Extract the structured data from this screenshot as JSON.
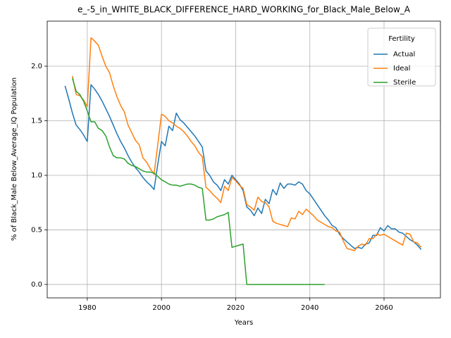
{
  "chart_data": {
    "type": "line",
    "title": "e_-5_in_WHITE_BLACK_DIFFERENCE_HARD_WORKING_for_Black_Male_Below_A",
    "x_label": "Years",
    "y_label": "% of Black_Male Below_Average_IQ Population",
    "legend_title": "Fertility",
    "legend_loc": "upper right",
    "grid": true,
    "x": [
      1974,
      1975,
      1976,
      1977,
      1978,
      1979,
      1980,
      1981,
      1982,
      1983,
      1984,
      1985,
      1986,
      1987,
      1988,
      1989,
      1990,
      1991,
      1992,
      1993,
      1994,
      1995,
      1996,
      1997,
      1998,
      1999,
      2000,
      2001,
      2002,
      2003,
      2004,
      2005,
      2006,
      2007,
      2008,
      2009,
      2010,
      2011,
      2012,
      2013,
      2014,
      2015,
      2016,
      2017,
      2018,
      2019,
      2020,
      2021,
      2022,
      2023,
      2024,
      2025,
      2026,
      2027,
      2028,
      2029,
      2030,
      2031,
      2032,
      2033,
      2034,
      2035,
      2036,
      2037,
      2038,
      2039,
      2040,
      2041,
      2042,
      2043,
      2044,
      2045,
      2046,
      2047,
      2048,
      2049,
      2050,
      2051,
      2052,
      2053,
      2054,
      2055,
      2056,
      2057,
      2058,
      2059,
      2060,
      2061,
      2062,
      2063,
      2064,
      2065,
      2066,
      2067,
      2068,
      2069,
      2070
    ],
    "series": [
      {
        "name": "Actual",
        "color": "#1f77b4",
        "values": [
          1.82,
          1.7,
          1.57,
          1.46,
          1.42,
          1.37,
          1.31,
          1.83,
          1.79,
          1.74,
          1.68,
          1.61,
          1.54,
          1.46,
          1.38,
          1.31,
          1.25,
          1.18,
          1.12,
          1.07,
          1.03,
          0.98,
          0.94,
          0.91,
          0.87,
          1.1,
          1.31,
          1.27,
          1.45,
          1.41,
          1.57,
          1.51,
          1.48,
          1.44,
          1.4,
          1.36,
          1.31,
          1.26,
          1.04,
          1.0,
          0.94,
          0.91,
          0.86,
          0.96,
          0.92,
          1.0,
          0.96,
          0.92,
          0.86,
          0.71,
          0.68,
          0.63,
          0.7,
          0.65,
          0.78,
          0.74,
          0.87,
          0.82,
          0.93,
          0.88,
          0.92,
          0.92,
          0.91,
          0.94,
          0.92,
          0.86,
          0.83,
          0.78,
          0.73,
          0.68,
          0.63,
          0.59,
          0.54,
          0.52,
          0.46,
          0.42,
          0.39,
          0.36,
          0.33,
          0.34,
          0.33,
          0.37,
          0.38,
          0.45,
          0.45,
          0.52,
          0.49,
          0.54,
          0.51,
          0.51,
          0.48,
          0.47,
          0.44,
          0.41,
          0.39,
          0.36,
          0.32
        ]
      },
      {
        "name": "Ideal",
        "color": "#ff7f0e",
        "values": [
          null,
          null,
          1.91,
          1.74,
          1.73,
          1.69,
          1.63,
          2.26,
          2.23,
          2.19,
          2.09,
          2.0,
          1.94,
          1.82,
          1.72,
          1.64,
          1.58,
          1.46,
          1.39,
          1.32,
          1.28,
          1.16,
          1.12,
          1.06,
          1.01,
          1.28,
          1.56,
          1.54,
          1.5,
          1.48,
          1.45,
          1.43,
          1.4,
          1.36,
          1.31,
          1.27,
          1.21,
          1.17,
          0.89,
          0.86,
          0.82,
          0.79,
          0.75,
          0.9,
          0.86,
          0.98,
          0.95,
          0.91,
          0.88,
          0.73,
          0.71,
          0.68,
          0.8,
          0.76,
          0.75,
          0.71,
          0.58,
          0.56,
          0.55,
          0.54,
          0.53,
          0.61,
          0.6,
          0.67,
          0.64,
          0.69,
          0.66,
          0.63,
          0.59,
          0.57,
          0.55,
          0.53,
          0.52,
          0.49,
          0.48,
          0.4,
          0.33,
          0.32,
          0.31,
          0.35,
          0.37,
          0.36,
          0.42,
          0.42,
          0.46,
          0.45,
          0.46,
          0.44,
          0.42,
          0.4,
          0.38,
          0.36,
          0.47,
          0.46,
          0.39,
          0.38,
          0.34
        ]
      },
      {
        "name": "Sterile",
        "color": "#2ca02c",
        "values": [
          null,
          null,
          1.89,
          1.77,
          1.74,
          1.68,
          1.59,
          1.49,
          1.49,
          1.43,
          1.41,
          1.36,
          1.26,
          1.18,
          1.16,
          1.16,
          1.15,
          1.11,
          1.09,
          1.08,
          1.06,
          1.04,
          1.03,
          1.03,
          1.02,
          0.99,
          0.96,
          0.94,
          0.92,
          0.91,
          0.91,
          0.9,
          0.91,
          0.92,
          0.92,
          0.91,
          0.89,
          0.88,
          0.59,
          0.59,
          0.6,
          0.62,
          0.63,
          0.64,
          0.66,
          0.34,
          0.35,
          0.36,
          0.37,
          0,
          0,
          0,
          0,
          0,
          0,
          0,
          0,
          0,
          0,
          0,
          0,
          0,
          0,
          0,
          0,
          0,
          0,
          0,
          0,
          0,
          0,
          null,
          null,
          null,
          null,
          null,
          null,
          null,
          null,
          null,
          null,
          null,
          null,
          null,
          null,
          null,
          null,
          null,
          null,
          null,
          null,
          null,
          null,
          null,
          null,
          null,
          null
        ]
      }
    ],
    "xlim": [
      1969.2,
      2075.2
    ],
    "xticks": [
      1980,
      2000,
      2020,
      2040,
      2060
    ],
    "ylim": [
      -0.123,
      2.413
    ],
    "yticks": [
      {
        "value": 0,
        "label": "0.0"
      },
      {
        "value": 0.5,
        "label": "0.5"
      },
      {
        "value": 1,
        "label": "1.0"
      },
      {
        "value": 1.5,
        "label": "1.5"
      },
      {
        "value": 2,
        "label": "2.0"
      }
    ]
  }
}
